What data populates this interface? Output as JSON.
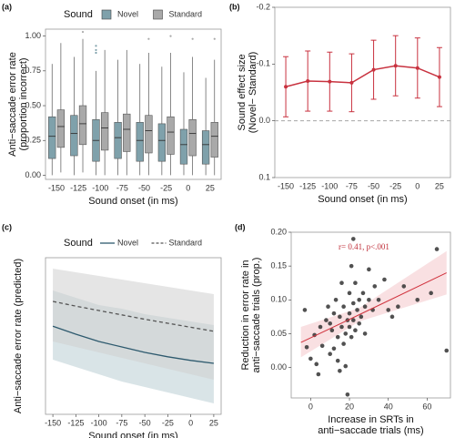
{
  "chart_data": [
    {
      "type": "box",
      "panel_label": "(a)",
      "legend_title": "Sound",
      "legend": "top",
      "xlabel": "Sound onset (in ms)",
      "ylabel": [
        "Anti−saccade error rate",
        "(proportion incorrect)"
      ],
      "categories": [
        "-150",
        "-125",
        "-100",
        "-75",
        "-50",
        "-25",
        "0",
        "25"
      ],
      "ylim": [
        -0.03,
        1.05
      ],
      "yticks": [
        {
          "value": 0,
          "label": "0.00"
        },
        {
          "value": 0.25,
          "label": "0.25"
        },
        {
          "value": 0.5,
          "label": "0.50"
        },
        {
          "value": 0.75,
          "label": "0.75"
        },
        {
          "value": 1,
          "label": "1.00"
        }
      ],
      "series": [
        {
          "name": "Novel",
          "color": "#7fa1ab",
          "boxes": [
            {
              "whislo": 0,
              "q1": 0.12,
              "med": 0.28,
              "q3": 0.42,
              "whishi": 0.8,
              "fliers": []
            },
            {
              "whislo": 0,
              "q1": 0.14,
              "med": 0.3,
              "q3": 0.43,
              "whishi": 0.85,
              "fliers": []
            },
            {
              "whislo": 0,
              "q1": 0.1,
              "med": 0.25,
              "q3": 0.4,
              "whishi": 0.75,
              "fliers": [
                0.88,
                0.9,
                0.93
              ]
            },
            {
              "whislo": 0,
              "q1": 0.12,
              "med": 0.27,
              "q3": 0.38,
              "whishi": 0.83,
              "fliers": []
            },
            {
              "whislo": 0,
              "q1": 0.1,
              "med": 0.25,
              "q3": 0.38,
              "whishi": 0.8,
              "fliers": []
            },
            {
              "whislo": 0,
              "q1": 0.1,
              "med": 0.25,
              "q3": 0.37,
              "whishi": 0.78,
              "fliers": []
            },
            {
              "whislo": 0,
              "q1": 0.08,
              "med": 0.22,
              "q3": 0.33,
              "whishi": 0.74,
              "fliers": []
            },
            {
              "whislo": 0,
              "q1": 0.08,
              "med": 0.22,
              "q3": 0.32,
              "whishi": 0.7,
              "fliers": []
            }
          ]
        },
        {
          "name": "Standard",
          "color": "#a9a9a9",
          "boxes": [
            {
              "whislo": 0.02,
              "q1": 0.2,
              "med": 0.35,
              "q3": 0.47,
              "whishi": 0.95,
              "fliers": []
            },
            {
              "whislo": 0.02,
              "q1": 0.22,
              "med": 0.37,
              "q3": 0.5,
              "whishi": 0.98,
              "fliers": [
                1.03
              ]
            },
            {
              "whislo": 0,
              "q1": 0.18,
              "med": 0.34,
              "q3": 0.45,
              "whishi": 0.9,
              "fliers": []
            },
            {
              "whislo": 0,
              "q1": 0.17,
              "med": 0.33,
              "q3": 0.44,
              "whishi": 0.9,
              "fliers": []
            },
            {
              "whislo": 0,
              "q1": 0.16,
              "med": 0.32,
              "q3": 0.43,
              "whishi": 0.88,
              "fliers": [
                0.98
              ]
            },
            {
              "whislo": 0,
              "q1": 0.15,
              "med": 0.31,
              "q3": 0.42,
              "whishi": 0.88,
              "fliers": [
                1.0
              ]
            },
            {
              "whislo": 0,
              "q1": 0.14,
              "med": 0.3,
              "q3": 0.4,
              "whishi": 0.85,
              "fliers": [
                0.98
              ]
            },
            {
              "whislo": 0,
              "q1": 0.13,
              "med": 0.28,
              "q3": 0.38,
              "whishi": 0.83,
              "fliers": [
                0.98
              ]
            }
          ]
        }
      ]
    },
    {
      "type": "line",
      "panel_label": "(b)",
      "xlabel": "Sound onset (in ms)",
      "ylabel": [
        "Sound effect size",
        "(Novel− Standard)"
      ],
      "categories": [
        "-150",
        "-125",
        "-100",
        "-75",
        "-50",
        "-25",
        "0",
        "25"
      ],
      "ylim": [
        -0.2,
        0.1
      ],
      "y_reversed": true,
      "yticks": [
        -0.2,
        -0.1,
        {
          "value": 0,
          "label": "0.0"
        },
        0.1
      ],
      "hline": 0,
      "series": [
        {
          "color": "#c8323f",
          "values": [
            -0.06,
            -0.07,
            -0.069,
            -0.067,
            -0.09,
            -0.097,
            -0.093,
            -0.077
          ],
          "error": [
            0.053,
            0.053,
            0.052,
            0.051,
            0.052,
            0.053,
            0.053,
            0.052
          ]
        }
      ]
    },
    {
      "type": "line",
      "panel_label": "(c)",
      "legend_title": "Sound",
      "legend": "top",
      "xlabel": "Sound onset (in ms)",
      "ylabel": [
        "Anti−saccade error rate (predicted)"
      ],
      "x": [
        -150,
        -125,
        -100,
        -75,
        -50,
        -25,
        0,
        25
      ],
      "xlim": [
        -158,
        33
      ],
      "xticks": [
        -150,
        -125,
        -100,
        -75,
        -50,
        -25,
        0,
        25
      ],
      "ylim": [
        0.02,
        0.45
      ],
      "series": [
        {
          "name": "Novel",
          "color": "#2e5a6e",
          "band_color": "#b9cdd3",
          "linestyle": "solid",
          "values": [
            0.262,
            0.24,
            0.22,
            0.205,
            0.19,
            0.178,
            0.168,
            0.16
          ],
          "lower": [
            0.17,
            0.15,
            0.13,
            0.11,
            0.095,
            0.08,
            0.065,
            0.05
          ],
          "upper": [
            0.36,
            0.34,
            0.32,
            0.31,
            0.295,
            0.285,
            0.275,
            0.265
          ]
        },
        {
          "name": "Standard",
          "color": "#555555",
          "band_color": "#cfcfcf",
          "linestyle": "dashed",
          "values": [
            0.33,
            0.317,
            0.305,
            0.293,
            0.281,
            0.27,
            0.259,
            0.248
          ],
          "lower": [
            0.22,
            0.205,
            0.19,
            0.175,
            0.16,
            0.145,
            0.13,
            0.115
          ],
          "upper": [
            0.42,
            0.41,
            0.4,
            0.39,
            0.38,
            0.37,
            0.36,
            0.35
          ]
        }
      ]
    },
    {
      "type": "scatter",
      "panel_label": "(d)",
      "xlabel": [
        "Increase in SRTs in",
        "anti−saccade trials (ms)"
      ],
      "ylabel": [
        "Reduction in error rate in",
        "anti−saccade trials (prop.)"
      ],
      "annotation": "r= 0.41, p<.001",
      "xlim": [
        -10,
        72
      ],
      "xticks": [
        0,
        20,
        40,
        60
      ],
      "ylim": [
        -0.045,
        0.2
      ],
      "yticks": [
        {
          "value": 0,
          "label": "0.00"
        },
        0.05,
        {
          "value": 0.1,
          "label": "0.10"
        },
        0.15,
        {
          "value": 0.2,
          "label": "0.20"
        }
      ],
      "series": [
        {
          "color": "#333333",
          "x": [
            -3,
            -2,
            0,
            2,
            3,
            4,
            5,
            6,
            8,
            9,
            10,
            10,
            11,
            12,
            12,
            13,
            14,
            14,
            15,
            15,
            16,
            16,
            17,
            17,
            18,
            18,
            19,
            19,
            20,
            20,
            20,
            21,
            21,
            22,
            22,
            22,
            23,
            23,
            24,
            25,
            25,
            26,
            27,
            28,
            28,
            30,
            30,
            32,
            33,
            35,
            38,
            40,
            42,
            45,
            48,
            55,
            62,
            65,
            70
          ],
          "values": [
            0.085,
            0.03,
            0.013,
            0.048,
            0.005,
            -0.01,
            0.06,
            0.032,
            0.07,
            0.09,
            0.065,
            0.02,
            0.055,
            0.08,
            0.028,
            0.1,
            0.045,
            0.01,
            0.075,
            -0.005,
            0.06,
            0.125,
            0.09,
            0.035,
            0.05,
            0.002,
            0.07,
            -0.04,
            0.11,
            0.08,
            0.06,
            0.15,
            0.045,
            0.19,
            0.07,
            0.095,
            0.055,
            0.125,
            0.085,
            0.1,
            0.065,
            0.075,
            0.11,
            0.09,
            0.05,
            0.145,
            0.1,
            0.085,
            0.12,
            0.1,
            0.13,
            0.085,
            0.075,
            0.09,
            0.12,
            0.1,
            0.11,
            0.175,
            0.025
          ]
        }
      ],
      "fit": {
        "color": "#d0313c",
        "band_color": "#f4c6ca",
        "x": [
          -5,
          25,
          70
        ],
        "values": [
          0.037,
          0.078,
          0.14
        ],
        "lower": [
          0.015,
          0.068,
          0.108
        ],
        "upper": [
          0.06,
          0.088,
          0.172
        ]
      }
    }
  ]
}
